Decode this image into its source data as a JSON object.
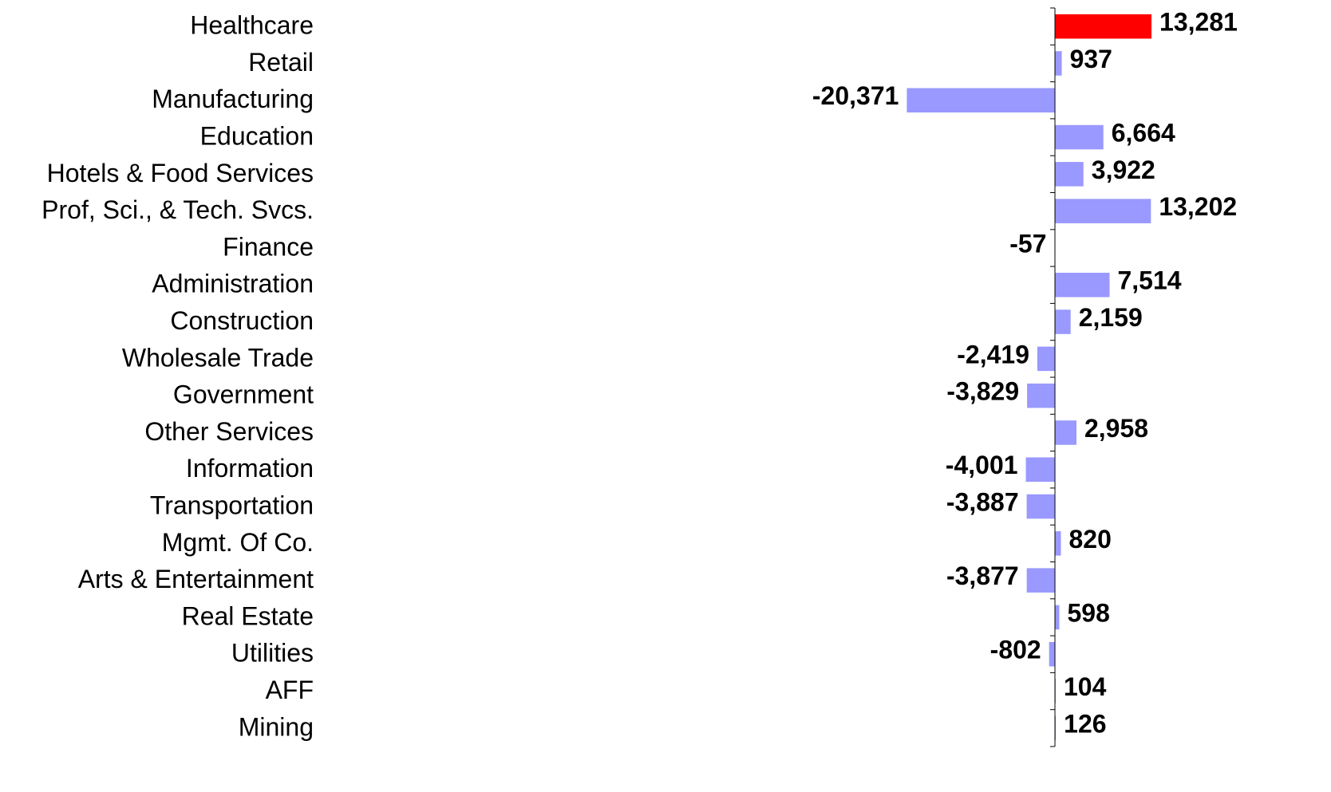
{
  "chart_data": {
    "type": "hbar",
    "categories": [
      "Healthcare",
      "Retail",
      "Manufacturing",
      "Education",
      "Hotels & Food Services",
      "Prof, Sci., & Tech. Svcs.",
      "Finance",
      "Administration",
      "Construction",
      "Wholesale Trade",
      "Government",
      "Other Services",
      "Information",
      "Transportation",
      "Mgmt. Of Co.",
      "Arts & Entertainment",
      "Real Estate",
      "Utilities",
      "AFF",
      "Mining"
    ],
    "values": [
      13281,
      937,
      -20371,
      6664,
      3922,
      13202,
      -57,
      7514,
      2159,
      -2419,
      -3829,
      2958,
      -4001,
      -3887,
      820,
      -3877,
      598,
      -802,
      104,
      126
    ],
    "value_labels": [
      "13,281",
      "937",
      "-20,371",
      "6,664",
      "3,922",
      "13,202",
      "-57",
      "7,514",
      "2,159",
      "-2,419",
      "-3,829",
      "2,958",
      "-4,001",
      "-3,887",
      "820",
      "-3,877",
      "598",
      "-802",
      "104",
      "126"
    ],
    "colors": [
      "#ff0000",
      "#9999ff",
      "#9999ff",
      "#9999ff",
      "#9999ff",
      "#9999ff",
      "#9999ff",
      "#9999ff",
      "#9999ff",
      "#9999ff",
      "#9999ff",
      "#9999ff",
      "#9999ff",
      "#9999ff",
      "#9999ff",
      "#9999ff",
      "#9999ff",
      "#9999ff",
      "#9999ff",
      "#9999ff"
    ],
    "xlim": [
      -25000,
      15000
    ]
  }
}
